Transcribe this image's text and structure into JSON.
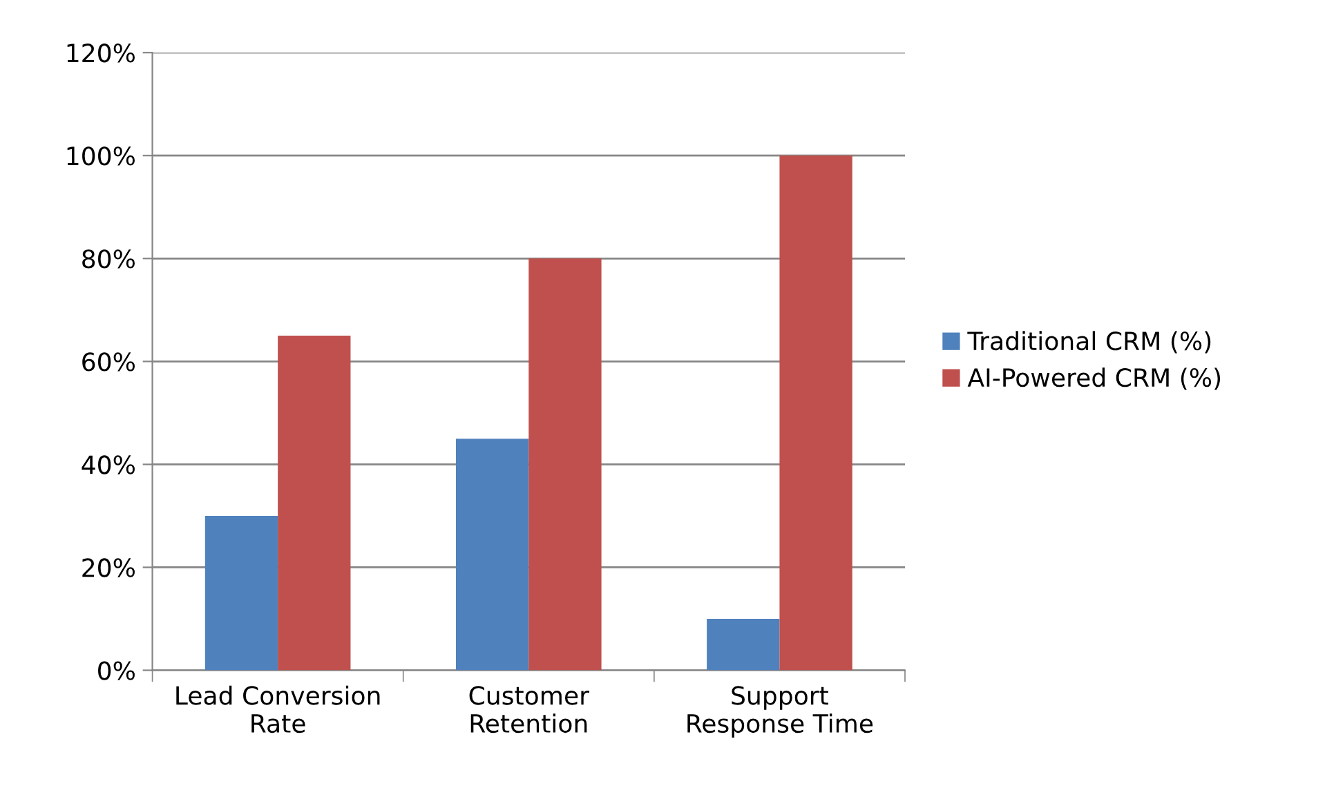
{
  "chart_data": {
    "type": "bar",
    "categories": [
      "Lead Conversion Rate",
      "Customer Retention",
      "Support Response Time"
    ],
    "series": [
      {
        "name": "Traditional CRM (%)",
        "color": "#4f81bd",
        "values": [
          30,
          45,
          10
        ]
      },
      {
        "name": "AI-Powered CRM (%)",
        "color": "#c0504d",
        "values": [
          65,
          80,
          100
        ]
      }
    ],
    "ylim": [
      0,
      120
    ],
    "yticks": [
      {
        "value": 0,
        "label": "0%"
      },
      {
        "value": 20,
        "label": "20%"
      },
      {
        "value": 40,
        "label": "40%"
      },
      {
        "value": 60,
        "label": "60%"
      },
      {
        "value": 80,
        "label": "80%"
      },
      {
        "value": 100,
        "label": "100%"
      },
      {
        "value": 120,
        "label": "120%"
      }
    ],
    "grid": "y",
    "legend": "right"
  }
}
